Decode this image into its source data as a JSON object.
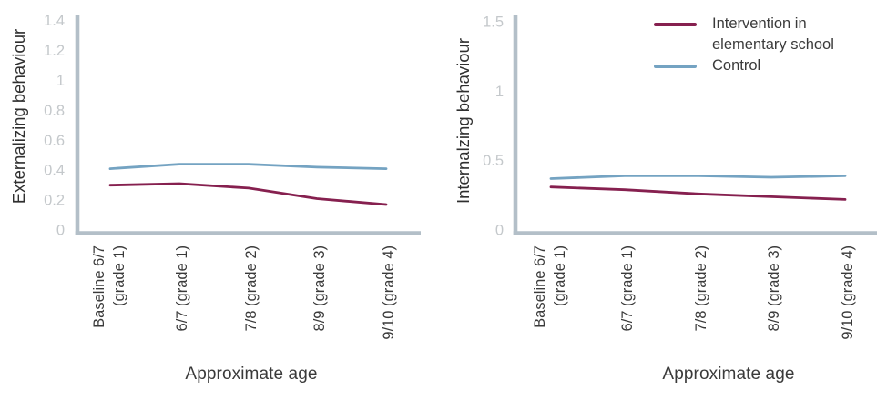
{
  "figure": {
    "background": "#ffffff",
    "legend": {
      "items": [
        {
          "label": "Intervention in elementary school",
          "series": "intervention"
        },
        {
          "label": "Control",
          "series": "control"
        }
      ]
    }
  },
  "colors": {
    "intervention": "#86204F",
    "control": "#74A3C2",
    "axis": "#B3BFC8",
    "tick_label": "#C4C8CB",
    "text": "#3A3A3A",
    "axis_title_text": "#2F2F2F"
  },
  "chart_data": [
    {
      "type": "line",
      "title": "",
      "ylabel": "Externalizing behaviour",
      "xlabel": "Approximate age",
      "categories": [
        "Baseline 6/7\n(grade 1)",
        "6/7 (grade 1)",
        "7/8 (grade 2)",
        "8/9 (grade 3)",
        "9/10 (grade 4)"
      ],
      "ylim": [
        0,
        1.4
      ],
      "yticks": [
        1.4,
        1.2,
        1,
        0.8,
        0.6,
        0.4,
        0.2,
        0
      ],
      "grid": false,
      "legend_position": "outside-top-right",
      "series": [
        {
          "key": "intervention",
          "name": "Intervention in elementary school",
          "values": [
            0.3,
            0.31,
            0.28,
            0.21,
            0.17
          ]
        },
        {
          "key": "control",
          "name": "Control",
          "values": [
            0.41,
            0.44,
            0.44,
            0.42,
            0.41
          ]
        }
      ]
    },
    {
      "type": "line",
      "title": "",
      "ylabel": "Internalzing behaviour",
      "xlabel": "Approximate age",
      "categories": [
        "Baseline 6/7\n(grade 1)",
        "6/7 (grade 1)",
        "7/8 (grade 2)",
        "8/9 (grade 3)",
        "9/10 (grade 4)"
      ],
      "ylim": [
        0,
        1.5
      ],
      "yticks": [
        1.5,
        1,
        0.5,
        0
      ],
      "grid": false,
      "legend_position": "outside-top-right",
      "series": [
        {
          "key": "intervention",
          "name": "Intervention in elementary school",
          "values": [
            0.31,
            0.29,
            0.26,
            0.24,
            0.22
          ]
        },
        {
          "key": "control",
          "name": "Control",
          "values": [
            0.37,
            0.39,
            0.39,
            0.38,
            0.39
          ]
        }
      ]
    }
  ]
}
